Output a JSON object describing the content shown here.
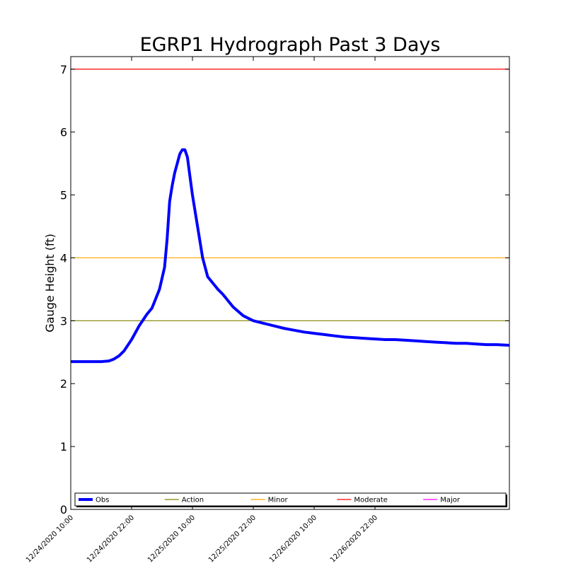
{
  "chart_data": {
    "type": "line",
    "title": "EGRP1 Hydrograph Past 3 Days",
    "xlabel": "",
    "ylabel": "Gauge Height (ft)",
    "ylim": [
      0,
      7.2
    ],
    "yticks": [
      0,
      1,
      2,
      3,
      4,
      5,
      6,
      7
    ],
    "xlim_hours": [
      0,
      86.5
    ],
    "x_unit": "hours since 12/24/2020 10:00",
    "xticks": [
      {
        "hour": 0,
        "label": "12/24/2020 10:00"
      },
      {
        "hour": 12,
        "label": "12/24/2020 22:00"
      },
      {
        "hour": 24,
        "label": "12/25/2020 10:00"
      },
      {
        "hour": 36,
        "label": "12/25/2020 22:00"
      },
      {
        "hour": 48,
        "label": "12/26/2020 10:00"
      },
      {
        "hour": 60,
        "label": "12/26/2020 22:00"
      }
    ],
    "thresholds": [
      {
        "name": "Action",
        "value": 3.0,
        "color": "#808000"
      },
      {
        "name": "Minor",
        "value": 4.0,
        "color": "#ffa500"
      },
      {
        "name": "Moderate",
        "value": 7.0,
        "color": "#ff0000"
      },
      {
        "name": "Major",
        "value": null,
        "color": "#ff00ff"
      }
    ],
    "series": [
      {
        "name": "Obs",
        "color": "#0000ff",
        "x": [
          -0.7,
          0,
          2,
          4,
          6,
          7.5,
          8.5,
          9.5,
          10.5,
          12,
          13.5,
          15,
          16,
          16.5,
          17.5,
          18.5,
          19,
          19.5,
          20,
          20.5,
          21,
          21.5,
          22,
          22.5,
          23,
          23.5,
          24,
          25,
          26,
          27,
          28,
          28.5,
          29,
          30,
          31,
          32,
          33,
          34,
          35,
          36,
          38,
          40,
          42,
          44,
          46,
          48,
          50,
          52,
          54,
          56,
          58,
          60,
          62,
          64,
          66,
          68,
          70,
          72,
          74,
          76,
          78,
          80,
          82,
          84,
          86.5
        ],
        "y": [
          2.36,
          2.35,
          2.35,
          2.35,
          2.35,
          2.36,
          2.39,
          2.44,
          2.52,
          2.7,
          2.92,
          3.1,
          3.2,
          3.3,
          3.5,
          3.85,
          4.3,
          4.9,
          5.15,
          5.35,
          5.5,
          5.65,
          5.72,
          5.72,
          5.6,
          5.3,
          5.0,
          4.5,
          4.0,
          3.7,
          3.6,
          3.55,
          3.5,
          3.42,
          3.32,
          3.22,
          3.15,
          3.08,
          3.04,
          3.0,
          2.96,
          2.92,
          2.88,
          2.85,
          2.82,
          2.8,
          2.78,
          2.76,
          2.74,
          2.73,
          2.72,
          2.71,
          2.7,
          2.7,
          2.69,
          2.68,
          2.67,
          2.66,
          2.65,
          2.64,
          2.64,
          2.63,
          2.62,
          2.62,
          2.61
        ]
      }
    ],
    "legend": {
      "placement": "bottom",
      "entries": [
        {
          "label": "Obs",
          "color": "#0000ff"
        },
        {
          "label": "Action",
          "color": "#808000"
        },
        {
          "label": "Minor",
          "color": "#ffa500"
        },
        {
          "label": "Moderate",
          "color": "#ff0000"
        },
        {
          "label": "Major",
          "color": "#ff00ff"
        }
      ]
    }
  }
}
